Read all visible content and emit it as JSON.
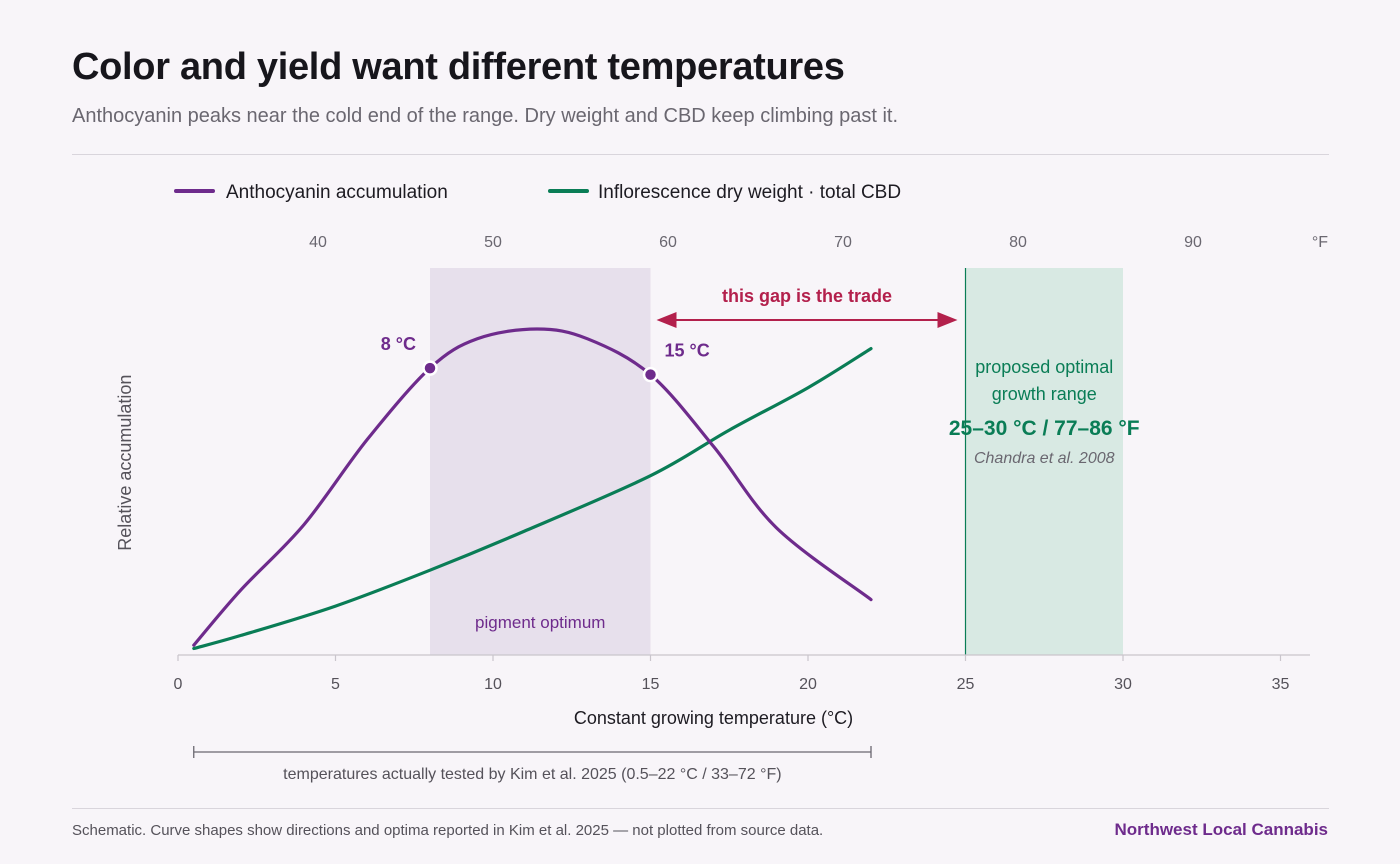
{
  "header": {
    "title": "Color and yield want different temperatures",
    "subtitle": "Anthocyanin peaks near the cold end of the range. Dry weight and CBD keep climbing past it."
  },
  "footer": {
    "note": "Schematic. Curve shapes show directions and optima reported in Kim et al. 2025 — not plotted from source data.",
    "brand": "Northwest Local Cannabis"
  },
  "colors": {
    "anthocyanin": "#6e2b8c",
    "yield": "#0a7d56",
    "gap": "#b3204c",
    "pigment_band": "#e7e0ec",
    "growth_band": "#d8e9e3"
  },
  "chart_data": {
    "type": "line",
    "title": "Color and yield want different temperatures",
    "subtitle": "Anthocyanin peaks near the cold end of the range. Dry weight and CBD keep climbing past it.",
    "xlabel": "Constant growing temperature (°C)",
    "ylabel": "Relative accumulation",
    "xlim": [
      0,
      36
    ],
    "ylim": [
      0,
      1
    ],
    "x_ticks": [
      0,
      5,
      10,
      15,
      20,
      25,
      30,
      35
    ],
    "secondary_x_axis": {
      "unit": "°F",
      "ticks": [
        40,
        50,
        60,
        70,
        80,
        90
      ]
    },
    "legend_position": "top-left",
    "series": [
      {
        "name": "Anthocyanin accumulation",
        "color": "#6e2b8c",
        "x": [
          0.5,
          2,
          4,
          6,
          8,
          9.5,
          11.4,
          13,
          15,
          17,
          19,
          22
        ],
        "y": [
          0.03,
          0.2,
          0.4,
          0.66,
          0.88,
          0.97,
          1.0,
          0.97,
          0.86,
          0.64,
          0.39,
          0.17
        ]
      },
      {
        "name": "Inflorescence dry weight · total CBD",
        "color": "#0a7d56",
        "x": [
          0.5,
          2,
          5,
          8,
          11,
          15,
          17.5,
          20,
          22
        ],
        "y": [
          0.02,
          0.06,
          0.15,
          0.26,
          0.38,
          0.55,
          0.69,
          0.82,
          0.94
        ]
      }
    ],
    "bands": [
      {
        "x": [
          8,
          15
        ],
        "label": "pigment optimum"
      },
      {
        "x": [
          25,
          30
        ],
        "label_lines": [
          "proposed optimal",
          "growth range"
        ],
        "range_label": "25–30 °C / 77–86 °F",
        "citation": "Chandra et al. 2008"
      }
    ],
    "annotations": [
      {
        "x": 8,
        "label": "8 °C"
      },
      {
        "x": 15,
        "label": "15 °C"
      },
      {
        "from_x": 15,
        "to_x": 25,
        "label": "this gap is the trade"
      }
    ],
    "tested_range": {
      "x": [
        0.5,
        22
      ],
      "label": "temperatures actually tested by Kim et al. 2025 (0.5–22 °C / 33–72 °F)"
    }
  }
}
